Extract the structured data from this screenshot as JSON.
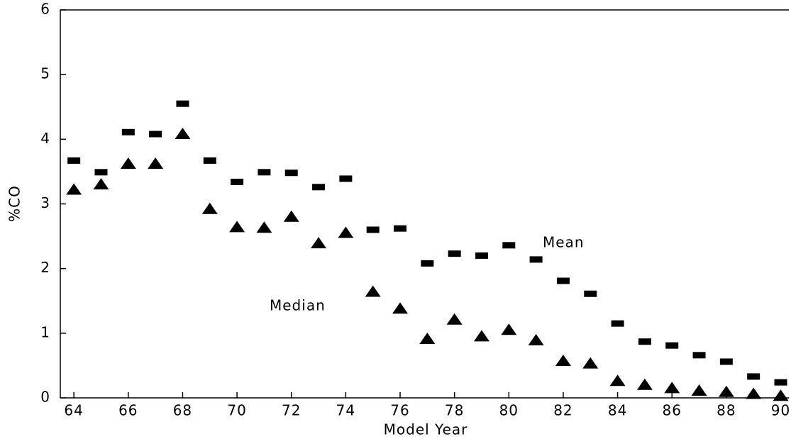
{
  "chart_data": {
    "type": "scatter",
    "x_label": "Model Year",
    "y_label": "%CO",
    "x": [
      64,
      65,
      66,
      67,
      68,
      69,
      70,
      71,
      72,
      73,
      74,
      75,
      76,
      77,
      78,
      79,
      80,
      81,
      82,
      83,
      84,
      85,
      86,
      87,
      88,
      89,
      90
    ],
    "series": [
      {
        "name": "Mean",
        "color": "#000000",
        "marker": "square",
        "values": [
          3.67,
          3.49,
          4.11,
          4.08,
          4.55,
          3.67,
          3.34,
          3.49,
          3.48,
          3.26,
          3.39,
          2.6,
          2.62,
          2.08,
          2.23,
          2.2,
          2.36,
          2.14,
          1.81,
          1.61,
          1.15,
          0.87,
          0.81,
          0.66,
          0.56,
          0.33,
          0.24
        ]
      },
      {
        "name": "Median",
        "color": "#000000",
        "marker": "triangle",
        "values": [
          3.22,
          3.3,
          3.62,
          3.62,
          4.08,
          2.92,
          2.64,
          2.63,
          2.8,
          2.39,
          2.55,
          1.64,
          1.38,
          0.91,
          1.21,
          0.95,
          1.05,
          0.89,
          0.57,
          0.53,
          0.26,
          0.2,
          0.15,
          0.11,
          0.09,
          0.06,
          0.03
        ]
      }
    ],
    "xlim": [
      63.5,
      90.3
    ],
    "xticks": [
      64,
      66,
      68,
      70,
      72,
      74,
      76,
      78,
      80,
      82,
      84,
      86,
      88,
      90
    ],
    "ylim": [
      0,
      6
    ],
    "yticks": [
      0,
      1,
      2,
      3,
      4,
      5,
      6
    ],
    "grid": false
  }
}
